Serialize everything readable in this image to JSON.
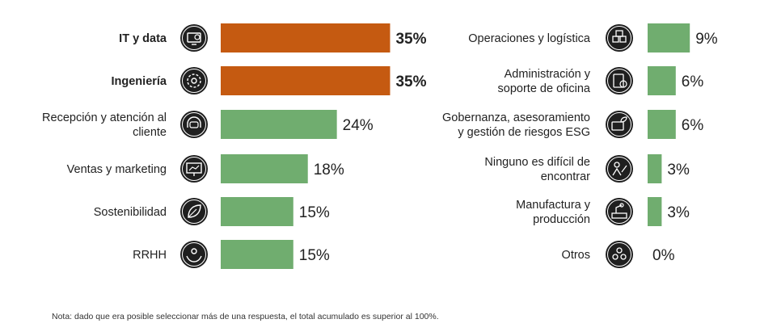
{
  "chart_data": [
    {
      "type": "bar",
      "orientation": "horizontal",
      "categories": [
        [
          "IT y data"
        ],
        [
          "Ingeniería"
        ],
        [
          "Recepción y atención al",
          "cliente"
        ],
        [
          "Ventas y marketing"
        ],
        [
          "Sostenibilidad"
        ],
        [
          "RRHH"
        ]
      ],
      "values": [
        35,
        35,
        24,
        18,
        15,
        15
      ],
      "value_labels": [
        "35%",
        "35%",
        "24%",
        "18%",
        "15%",
        "15%"
      ],
      "highlight": [
        true,
        true,
        false,
        false,
        false,
        false
      ],
      "icons": [
        "monitor-gear-icon",
        "brain-gear-icon",
        "chat-headset-icon",
        "presentation-chart-icon",
        "leaf-icon",
        "hands-person-icon"
      ]
    },
    {
      "type": "bar",
      "orientation": "horizontal",
      "categories": [
        [
          "Operaciones y logística"
        ],
        [
          "Administración y",
          "soporte de oficina"
        ],
        [
          "Gobernanza, asesoramiento",
          "y gestión de riesgos ESG"
        ],
        [
          "Ninguno es difícil de",
          "encontrar"
        ],
        [
          "Manufactura y",
          "producción"
        ],
        [
          "Otros"
        ]
      ],
      "values": [
        9,
        6,
        6,
        3,
        3,
        0
      ],
      "value_labels": [
        "9%",
        "6%",
        "6%",
        "3%",
        "3%",
        "0%"
      ],
      "highlight": [
        false,
        false,
        false,
        false,
        false,
        false
      ],
      "icons": [
        "boxes-icon",
        "clipboard-check-icon",
        "briefcase-leaf-icon",
        "person-growth-icon",
        "factory-robot-icon",
        "group-icon"
      ]
    }
  ],
  "colors": {
    "highlight": "#c55a11",
    "normal": "#70ad6f",
    "icon": "#1f1f1f"
  },
  "note": "Nota: dado que era posible seleccionar más de una respuesta, el total acumulado es superior al 100%."
}
